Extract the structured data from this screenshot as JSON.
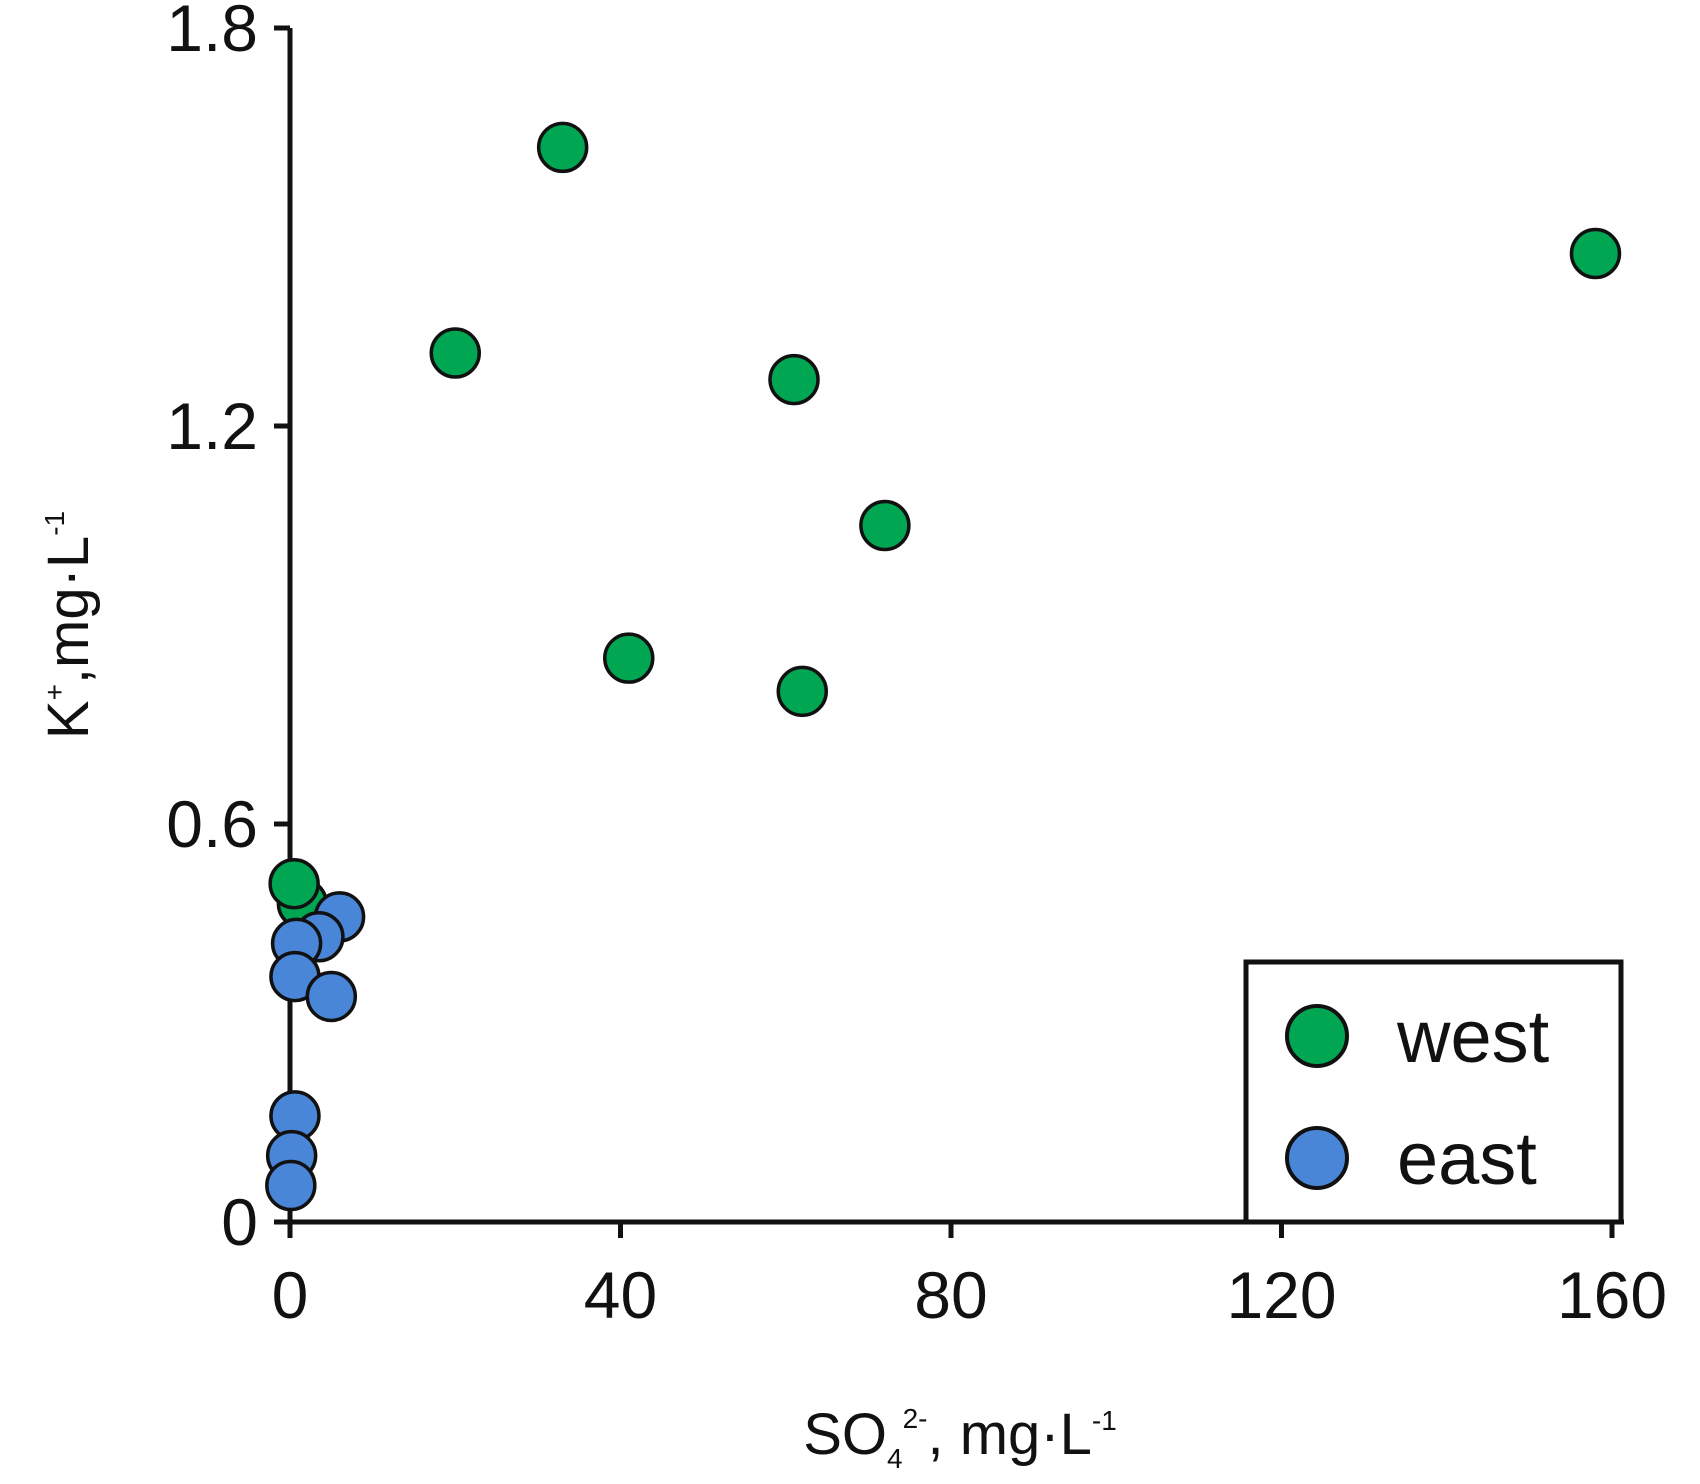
{
  "chart_data": {
    "type": "scatter",
    "title": "",
    "xlabel": {
      "base": "SO",
      "sub": "4",
      "sup": "2-",
      "unit": ", mg·L",
      "unit_sup": "-1"
    },
    "ylabel": {
      "base": "K",
      "sup": "+",
      "unit": ",mg·L",
      "unit_sup": "-1"
    },
    "xlim": [
      0,
      160
    ],
    "ylim": [
      0,
      1.8
    ],
    "xticks": [
      0,
      40,
      80,
      120,
      160
    ],
    "yticks": [
      0,
      0.6,
      1.2,
      1.8
    ],
    "xtick_labels": [
      "0",
      "40",
      "80",
      "120",
      "160"
    ],
    "ytick_labels": [
      "0",
      "0.6",
      "1.2",
      "1.8"
    ],
    "grid": false,
    "legend_position": "bottom-right",
    "series": [
      {
        "name": "west",
        "color": "#00a651",
        "points": [
          {
            "x": 33,
            "y": 1.62
          },
          {
            "x": 158,
            "y": 1.46
          },
          {
            "x": 20,
            "y": 1.31
          },
          {
            "x": 61,
            "y": 1.27
          },
          {
            "x": 72,
            "y": 1.05
          },
          {
            "x": 41,
            "y": 0.85
          },
          {
            "x": 62,
            "y": 0.8
          },
          {
            "x": 1.5,
            "y": 0.48
          },
          {
            "x": 0.5,
            "y": 0.51
          }
        ]
      },
      {
        "name": "east",
        "color": "#4a86d8",
        "points": [
          {
            "x": 6,
            "y": 0.46
          },
          {
            "x": 3.5,
            "y": 0.43
          },
          {
            "x": 0.8,
            "y": 0.42
          },
          {
            "x": 0.6,
            "y": 0.37
          },
          {
            "x": 5,
            "y": 0.34
          },
          {
            "x": 0.6,
            "y": 0.16
          },
          {
            "x": 0.2,
            "y": 0.1
          },
          {
            "x": 0.1,
            "y": 0.055
          }
        ]
      }
    ]
  }
}
